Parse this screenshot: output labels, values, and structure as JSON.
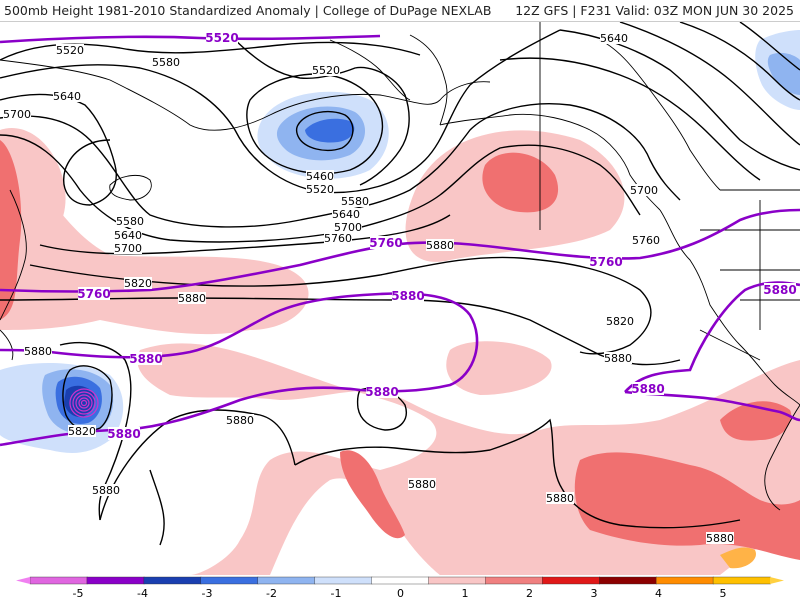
{
  "header": {
    "left_title": "500mb Height 1981-2010 Standardized Anomaly | College of DuPage NEXLAB",
    "right_title": "12Z GFS | F231 Valid: 03Z MON JUN 30 2025"
  },
  "contour_labels_black": [
    "5520",
    "5580",
    "5640",
    "5700",
    "5520",
    "5460",
    "5520",
    "5580",
    "5640",
    "5700",
    "5760",
    "5580",
    "5640",
    "5700",
    "5820",
    "5880",
    "5880",
    "5880",
    "5820",
    "5880",
    "5880",
    "5880",
    "5880",
    "5880",
    "5640",
    "5700",
    "5760",
    "5820",
    "5880"
  ],
  "contour_labels_purple": [
    "5520",
    "5760",
    "5760",
    "5760",
    "5880",
    "5880",
    "5880",
    "5880",
    "5880",
    "5880"
  ],
  "colorbar": {
    "tick_labels": [
      "-5",
      "-4",
      "-3",
      "-2",
      "-1",
      "0",
      "1",
      "2",
      "3",
      "4",
      "5"
    ],
    "colors": [
      "#e066e0",
      "#8a00c8",
      "#1a3fb0",
      "#3a6fe0",
      "#8fb4f0",
      "#cfe0fb",
      "#ffffff",
      "#f9c6c6",
      "#f08080",
      "#e01818",
      "#8c0000",
      "#ff8c00",
      "#ffc000"
    ]
  },
  "colors": {
    "purple_contour": "#8a00c8",
    "black_contour": "#000000",
    "positive_light": "#f9c6c6",
    "positive_mid": "#f07070",
    "negative_light": "#cfe0fb",
    "negative_mid": "#8fb4f0",
    "negative_strong": "#3a6fe0"
  }
}
